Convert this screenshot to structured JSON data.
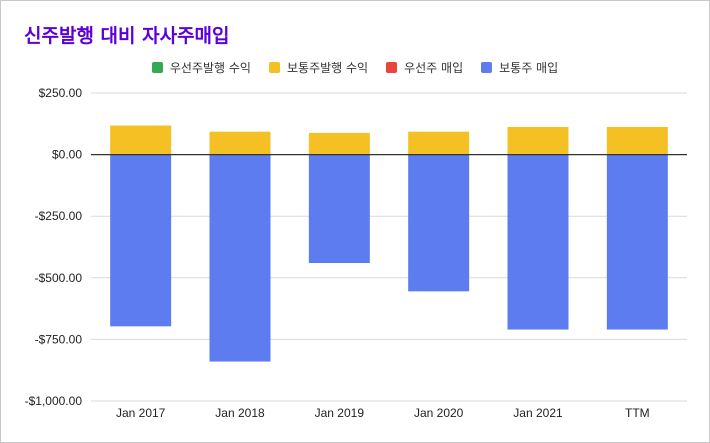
{
  "colors": {
    "title": "#5b00d9",
    "gridline": "#d9d9d9",
    "zero_line": "#333333"
  },
  "chart_data": {
    "type": "bar",
    "stacked": true,
    "title": "신주발행 대비 자사주매입",
    "categories": [
      "Jan 2017",
      "Jan 2018",
      "Jan 2019",
      "Jan 2020",
      "Jan 2021",
      "TTM"
    ],
    "series": [
      {
        "name": "우선주발행 수익",
        "color": "#34a853",
        "values": [
          0,
          0,
          0,
          0,
          0,
          0
        ]
      },
      {
        "name": "보통주발행 수익",
        "color": "#f4c024",
        "values": [
          118,
          93,
          88,
          93,
          112,
          112
        ]
      },
      {
        "name": "우선주 매입",
        "color": "#e8453c",
        "values": [
          0,
          0,
          0,
          0,
          0,
          0
        ]
      },
      {
        "name": "보통주 매입",
        "color": "#5c7cf0",
        "values": [
          -697,
          -840,
          -440,
          -555,
          -710,
          -710
        ]
      }
    ],
    "ylim": [
      -1000,
      250
    ],
    "yticks": [
      250,
      0,
      -250,
      -500,
      -750,
      -1000
    ],
    "ytick_labels": [
      "$250.00",
      "$0.00",
      "-$250.00",
      "-$500.00",
      "-$750.00",
      "-$1,000.00"
    ],
    "xlabel": "",
    "ylabel": "",
    "legend_position": "top-center",
    "grid": true
  }
}
